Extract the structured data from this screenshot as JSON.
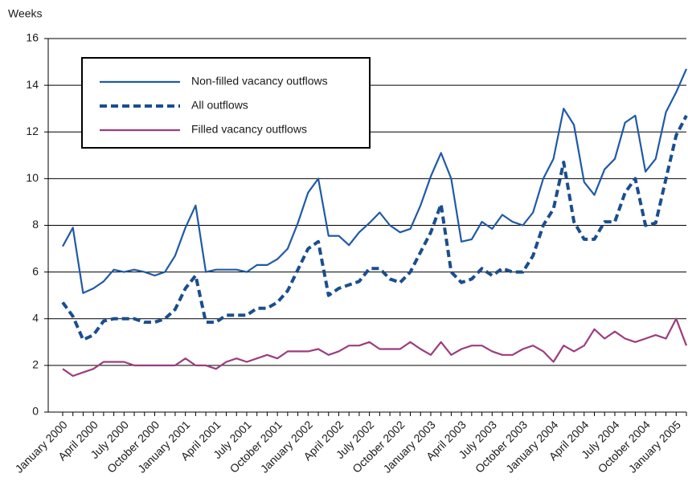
{
  "chart_data": {
    "type": "line",
    "y_label": "Weeks",
    "categories": [
      "January 2000",
      null,
      null,
      "April 2000",
      null,
      null,
      "July 2000",
      null,
      null,
      "October 2000",
      null,
      null,
      "January 2001",
      null,
      null,
      "April 2001",
      null,
      null,
      "July 2001",
      null,
      null,
      "October 2001",
      null,
      null,
      "January 2002",
      null,
      null,
      "April 2002",
      null,
      null,
      "July 2002",
      null,
      null,
      "October 2002",
      null,
      null,
      "January 2003",
      null,
      null,
      "April 2003",
      null,
      null,
      "July 2003",
      null,
      null,
      "October 2003",
      null,
      null,
      "January 2004",
      null,
      null,
      "April 2004",
      null,
      null,
      "July 2004",
      null,
      null,
      "October 2004",
      null,
      null,
      "January 2005",
      null
    ],
    "series": [
      {
        "name": "Non-filled vacancy outflows",
        "color": "#1f5aa6",
        "dash": false,
        "values": [
          7.1,
          7.9,
          5.1,
          5.3,
          5.6,
          6.1,
          6.0,
          6.1,
          6.0,
          5.85,
          6.0,
          6.7,
          7.9,
          8.85,
          6.0,
          6.1,
          6.1,
          6.1,
          6.0,
          6.3,
          6.3,
          6.55,
          7.0,
          8.1,
          9.4,
          10.0,
          7.55,
          7.55,
          7.15,
          7.7,
          8.1,
          8.55,
          8.0,
          7.7,
          7.85,
          8.85,
          10.1,
          11.1,
          10.0,
          7.3,
          7.4,
          8.15,
          7.85,
          8.45,
          8.15,
          8.0,
          8.55,
          10.0,
          10.85,
          13.0,
          12.3,
          9.85,
          9.3,
          10.4,
          10.85,
          12.4,
          12.7,
          10.3,
          10.85,
          12.85,
          13.7,
          14.7
        ]
      },
      {
        "name": "All outflows",
        "color": "#1a4e8e",
        "dash": true,
        "values": [
          4.7,
          4.1,
          3.1,
          3.3,
          3.9,
          4.0,
          4.0,
          4.0,
          3.85,
          3.85,
          4.0,
          4.4,
          5.3,
          5.85,
          3.85,
          3.85,
          4.15,
          4.15,
          4.15,
          4.45,
          4.45,
          4.7,
          5.2,
          6.1,
          7.0,
          7.3,
          5.0,
          5.3,
          5.45,
          5.6,
          6.15,
          6.15,
          5.7,
          5.55,
          6.0,
          6.85,
          7.7,
          8.9,
          6.0,
          5.55,
          5.7,
          6.15,
          5.85,
          6.15,
          6.0,
          6.0,
          6.7,
          8.0,
          8.7,
          10.7,
          8.15,
          7.4,
          7.4,
          8.15,
          8.15,
          9.4,
          10.0,
          8.0,
          8.1,
          10.0,
          11.85,
          12.7
        ]
      },
      {
        "name": "Filled vacancy outflows",
        "color": "#9b3d7e",
        "dash": false,
        "values": [
          1.85,
          1.55,
          1.7,
          1.85,
          2.15,
          2.15,
          2.15,
          2.0,
          2.0,
          2.0,
          2.0,
          2.0,
          2.3,
          2.0,
          2.0,
          1.85,
          2.15,
          2.3,
          2.15,
          2.3,
          2.45,
          2.3,
          2.6,
          2.6,
          2.6,
          2.7,
          2.45,
          2.6,
          2.85,
          2.85,
          3.0,
          2.7,
          2.7,
          2.7,
          3.0,
          2.7,
          2.45,
          3.0,
          2.45,
          2.7,
          2.85,
          2.85,
          2.6,
          2.45,
          2.45,
          2.7,
          2.85,
          2.6,
          2.15,
          2.85,
          2.6,
          2.85,
          3.55,
          3.15,
          3.45,
          3.15,
          3.0,
          3.15,
          3.3,
          3.15,
          4.0,
          2.85
        ]
      }
    ],
    "ylim": [
      0,
      16
    ],
    "yticks": [
      0,
      2,
      4,
      6,
      8,
      10,
      12,
      14,
      16
    ],
    "grid": true,
    "legend": "upper left"
  }
}
